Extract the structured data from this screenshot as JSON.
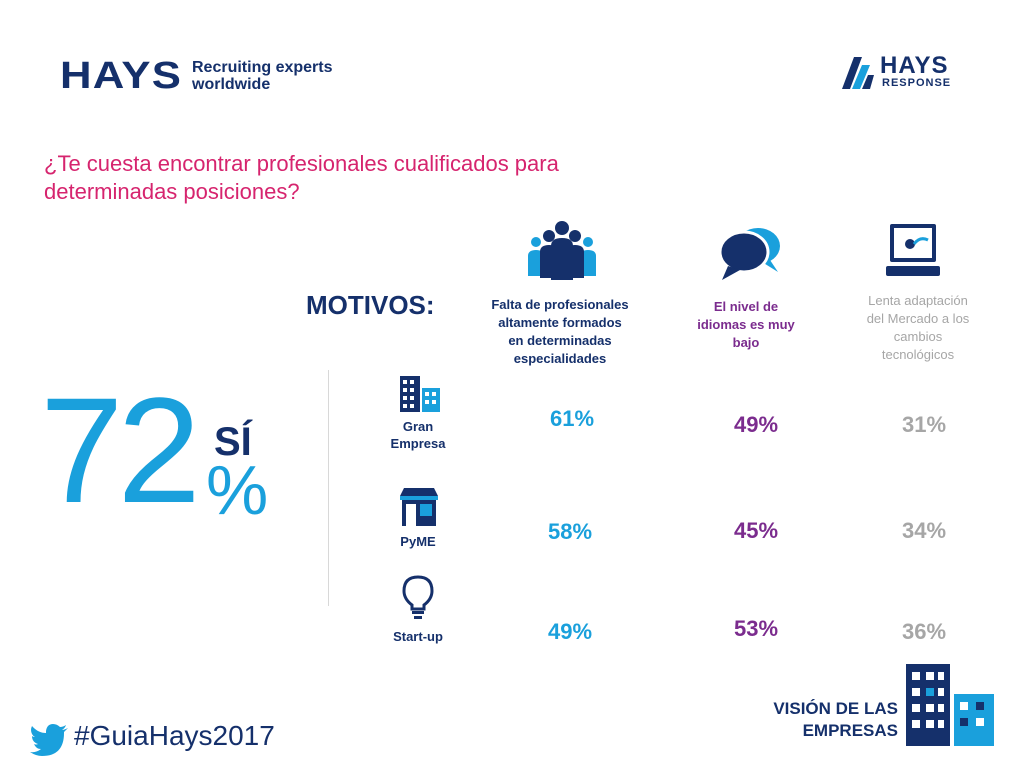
{
  "header": {
    "brand": "HAYS",
    "tagline_line1": "Recruiting experts",
    "tagline_line2": "worldwide",
    "response_brand": "HAYS",
    "response_sub": "RESPONSE"
  },
  "question_line1": "¿Te cuesta encontrar profesionales cualificados para",
  "question_line2": "determinadas posiciones?",
  "motivos_label": "MOTIVOS:",
  "headline": {
    "number": "72",
    "suffix": "%",
    "answer": "SÍ"
  },
  "columns": [
    {
      "lines": [
        "Falta de profesionales",
        "altamente formados",
        "en determinadas",
        "especialidades"
      ],
      "icon": "people-group-icon",
      "color": "#15306b"
    },
    {
      "lines": [
        "El nivel de",
        "idiomas es muy",
        "bajo"
      ],
      "icon": "speech-bubbles-icon",
      "color": "#7b2c8e"
    },
    {
      "lines": [
        "Lenta adaptación",
        "del Mercado a los",
        "cambios",
        "tecnológicos"
      ],
      "icon": "computer-monitor-icon",
      "color": "#a6a6a6"
    }
  ],
  "rows": [
    {
      "label_lines": [
        "Gran",
        "Empresa"
      ],
      "icon": "office-buildings-icon",
      "values": [
        "61%",
        "49%",
        "31%"
      ]
    },
    {
      "label_lines": [
        "PyME"
      ],
      "icon": "storefront-icon",
      "values": [
        "58%",
        "45%",
        "34%"
      ]
    },
    {
      "label_lines": [
        "Start-up"
      ],
      "icon": "lightbulb-icon",
      "values": [
        "49%",
        "53%",
        "36%"
      ]
    }
  ],
  "footer": {
    "hashtag": "#GuiaHays2017",
    "vision_line1": "VISIÓN DE LAS",
    "vision_line2": "EMPRESAS"
  },
  "colors": {
    "navy": "#15306b",
    "blue": "#1aa0dc",
    "magenta": "#d6246e",
    "purple": "#7b2c8e",
    "gray": "#a6a6a6"
  }
}
